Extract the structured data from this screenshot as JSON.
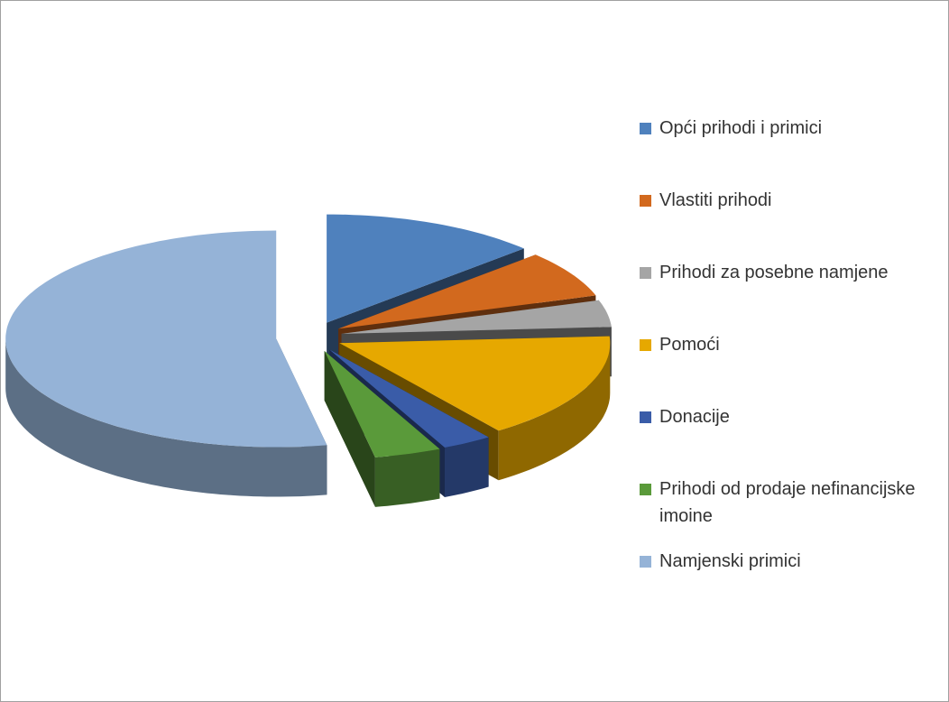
{
  "chart_data": {
    "type": "pie",
    "categories": [
      "Opći prihodi i primici",
      "Vlastiti prihodi",
      "Prihodi za posebne namjene",
      "Pomoći",
      "Donacije",
      "Prihodi od prodaje nefinancijske imoine",
      "Namjenski primici"
    ],
    "values": [
      13,
      7,
      4,
      16,
      3,
      4,
      53
    ],
    "colors": [
      "#4f81bd",
      "#d2691e",
      "#a5a5a5",
      "#e6a800",
      "#3a5ca8",
      "#5a9a3a",
      "#95b3d7"
    ],
    "legend": "right"
  }
}
